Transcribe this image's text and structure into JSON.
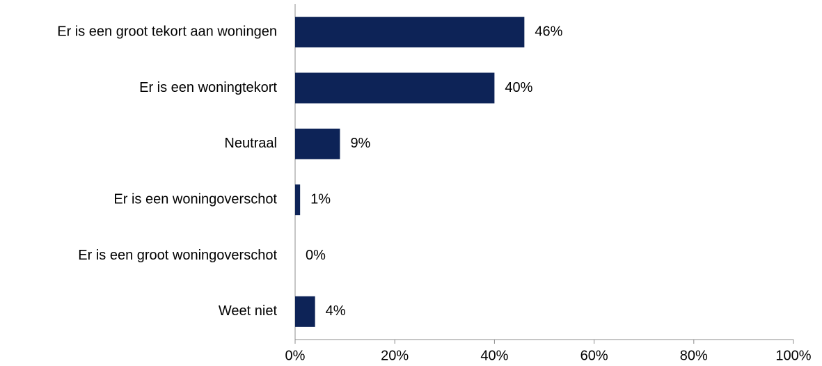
{
  "chart_data": {
    "type": "bar",
    "orientation": "horizontal",
    "categories": [
      "Er is een groot tekort aan woningen",
      "Er is een woningtekort",
      "Neutraal",
      "Er is een woningoverschot",
      "Er is een groot woningoverschot",
      "Weet niet"
    ],
    "values": [
      46,
      40,
      9,
      1,
      0,
      4
    ],
    "value_labels": [
      "46%",
      "40%",
      "9%",
      "1%",
      "0%",
      "4%"
    ],
    "color": "#0d2357",
    "xlim": [
      0,
      100
    ],
    "xticks": [
      {
        "value": 0,
        "label": "0%"
      },
      {
        "value": 20,
        "label": "20%"
      },
      {
        "value": 40,
        "label": "40%"
      },
      {
        "value": 60,
        "label": "60%"
      },
      {
        "value": 80,
        "label": "80%"
      },
      {
        "value": 100,
        "label": "100%"
      }
    ],
    "grid": false
  }
}
